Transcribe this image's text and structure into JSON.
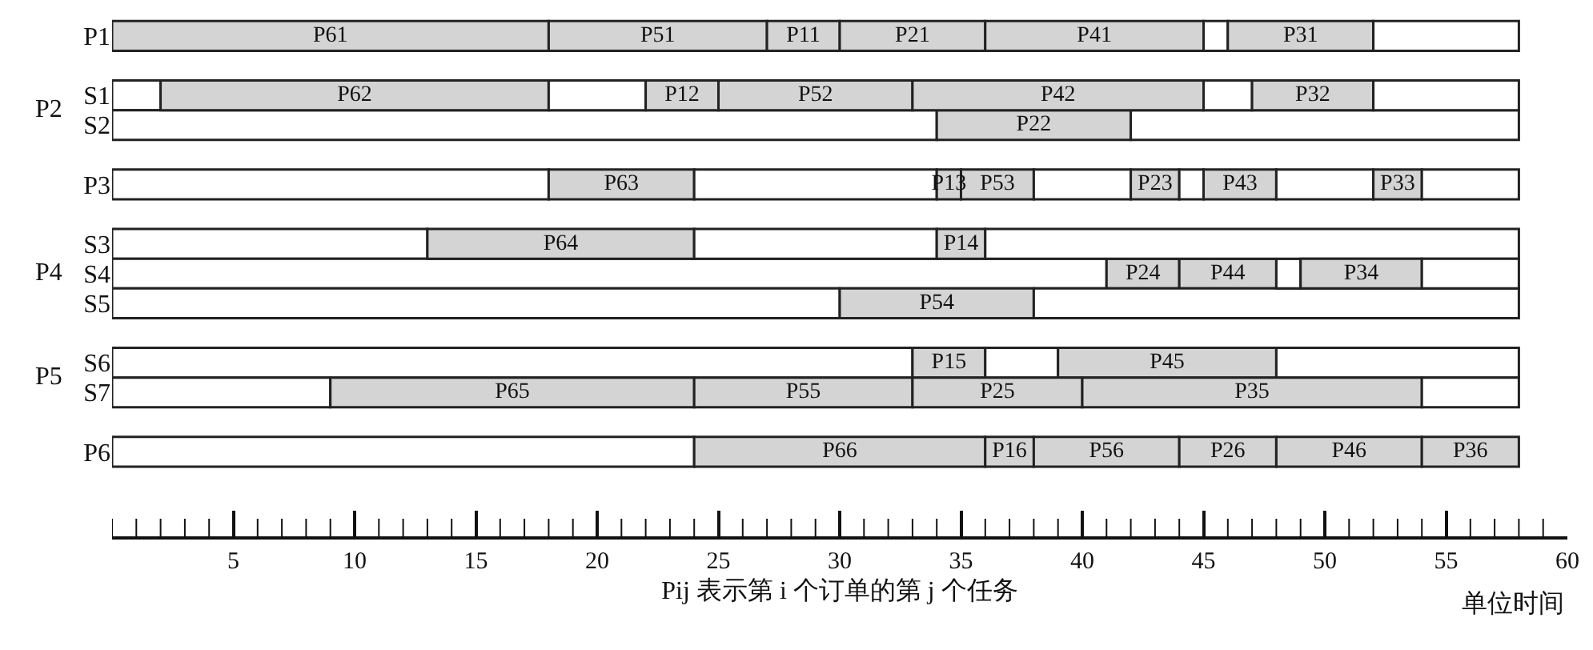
{
  "chart_data": {
    "type": "bar",
    "orientation": "horizontal",
    "xlabel": "Pij 表示第 i 个订单的第 j 个任务",
    "annotations": [
      "P2",
      "P4",
      "P5",
      "单位时间"
    ],
    "categories": [
      "P1",
      null,
      "S1",
      "S2",
      null,
      "P3",
      null,
      "S3",
      "S4",
      "S5",
      null,
      "S6",
      "S7",
      null,
      "P6"
    ],
    "xlim": [
      0,
      60
    ],
    "xticks": [
      5,
      10,
      15,
      20,
      25,
      30,
      35,
      40,
      45,
      50,
      55,
      60
    ],
    "series": [
      {
        "base": [
          0,
          null,
          0,
          0,
          null,
          0,
          null,
          0,
          0,
          0,
          null,
          0,
          0,
          null,
          0
        ],
        "values": [
          18,
          null,
          2,
          34,
          null,
          18,
          null,
          13,
          41,
          30,
          null,
          33,
          9,
          null,
          24
        ],
        "colors": [
          "#d4d4d4",
          null,
          "#ffffff",
          "#ffffff",
          null,
          "#ffffff",
          null,
          "#ffffff",
          "#ffffff",
          "#ffffff",
          null,
          "#ffffff",
          "#ffffff",
          null,
          "#ffffff"
        ],
        "value_labels": [
          "P61",
          null,
          null,
          null,
          null,
          null,
          null,
          null,
          null,
          null,
          null,
          null,
          null,
          null,
          null
        ]
      },
      {
        "base": [
          18,
          null,
          2,
          34,
          null,
          18,
          null,
          13,
          41,
          30,
          null,
          33,
          9,
          null,
          24
        ],
        "values": [
          9,
          null,
          16,
          8,
          null,
          6,
          null,
          11,
          3,
          8,
          null,
          3,
          15,
          null,
          12
        ],
        "colors": [
          "#d4d4d4",
          null,
          "#d4d4d4",
          "#d4d4d4",
          null,
          "#d4d4d4",
          null,
          "#d4d4d4",
          "#d4d4d4",
          "#d4d4d4",
          null,
          "#d4d4d4",
          "#d4d4d4",
          null,
          "#d4d4d4"
        ],
        "value_labels": [
          "P51",
          null,
          "P62",
          "P22",
          null,
          "P63",
          null,
          "P64",
          "P24",
          "P54",
          null,
          "P15",
          "P65",
          null,
          "P66"
        ]
      },
      {
        "base": [
          27,
          null,
          18,
          42,
          null,
          24,
          null,
          24,
          44,
          38,
          null,
          36,
          24,
          null,
          36
        ],
        "values": [
          3,
          null,
          4,
          16,
          null,
          10,
          null,
          10,
          4,
          20,
          null,
          3,
          9,
          null,
          2
        ],
        "colors": [
          "#d4d4d4",
          null,
          "#ffffff",
          "#ffffff",
          null,
          "#ffffff",
          null,
          "#ffffff",
          "#d4d4d4",
          "#ffffff",
          null,
          "#ffffff",
          "#d4d4d4",
          null,
          "#d4d4d4"
        ],
        "value_labels": [
          "P11",
          null,
          null,
          null,
          null,
          null,
          null,
          null,
          "P44",
          null,
          null,
          null,
          "P55",
          null,
          "P16"
        ]
      },
      {
        "base": [
          30,
          null,
          22,
          null,
          null,
          34,
          null,
          34,
          48,
          null,
          null,
          39,
          33,
          null,
          38
        ],
        "values": [
          6,
          null,
          3,
          null,
          null,
          1,
          null,
          2,
          1,
          null,
          null,
          9,
          7,
          null,
          6
        ],
        "colors": [
          "#d4d4d4",
          null,
          "#d4d4d4",
          null,
          null,
          "#d4d4d4",
          null,
          "#d4d4d4",
          "#ffffff",
          null,
          null,
          "#d4d4d4",
          "#d4d4d4",
          null,
          "#d4d4d4"
        ],
        "value_labels": [
          "P21",
          null,
          "P12",
          null,
          null,
          "P13",
          null,
          "P14",
          null,
          null,
          null,
          "P45",
          "P25",
          null,
          "P56"
        ]
      },
      {
        "base": [
          36,
          null,
          25,
          null,
          null,
          35,
          null,
          36,
          49,
          null,
          null,
          48,
          40,
          null,
          44
        ],
        "values": [
          9,
          null,
          8,
          null,
          null,
          3,
          null,
          22,
          5,
          null,
          null,
          10,
          14,
          null,
          4
        ],
        "colors": [
          "#d4d4d4",
          null,
          "#d4d4d4",
          null,
          null,
          "#d4d4d4",
          null,
          "#ffffff",
          "#d4d4d4",
          null,
          null,
          "#ffffff",
          "#d4d4d4",
          null,
          "#d4d4d4"
        ],
        "value_labels": [
          "P41",
          null,
          "P52",
          null,
          null,
          "P53",
          null,
          null,
          "P34",
          null,
          null,
          null,
          "P35",
          null,
          "P26"
        ]
      },
      {
        "base": [
          45,
          null,
          33,
          null,
          null,
          38,
          null,
          null,
          54,
          null,
          null,
          null,
          54,
          null,
          48
        ],
        "values": [
          1,
          null,
          12,
          null,
          null,
          4,
          null,
          null,
          4,
          null,
          null,
          null,
          4,
          null,
          6
        ],
        "colors": [
          "#ffffff",
          null,
          "#d4d4d4",
          null,
          null,
          "#ffffff",
          null,
          null,
          "#ffffff",
          null,
          null,
          null,
          "#ffffff",
          null,
          "#d4d4d4"
        ],
        "value_labels": [
          null,
          null,
          "P42",
          null,
          null,
          null,
          null,
          null,
          null,
          null,
          null,
          null,
          null,
          null,
          "P46"
        ]
      },
      {
        "base": [
          46,
          null,
          45,
          null,
          null,
          42,
          null,
          null,
          null,
          null,
          null,
          null,
          null,
          null,
          54
        ],
        "values": [
          6,
          null,
          2,
          null,
          null,
          2,
          null,
          null,
          null,
          null,
          null,
          null,
          null,
          null,
          4
        ],
        "colors": [
          "#d4d4d4",
          null,
          "#ffffff",
          null,
          null,
          "#d4d4d4",
          null,
          null,
          null,
          null,
          null,
          null,
          null,
          null,
          "#d4d4d4"
        ],
        "value_labels": [
          "P31",
          null,
          null,
          null,
          null,
          "P23",
          null,
          null,
          null,
          null,
          null,
          null,
          null,
          null,
          "P36"
        ]
      },
      {
        "base": [
          52,
          null,
          47,
          null,
          null,
          44,
          null,
          null,
          null,
          null,
          null,
          null,
          null,
          null,
          null
        ],
        "values": [
          6,
          null,
          5,
          null,
          null,
          1,
          null,
          null,
          null,
          null,
          null,
          null,
          null,
          null,
          null
        ],
        "colors": [
          "#ffffff",
          null,
          "#d4d4d4",
          null,
          null,
          "#ffffff",
          null,
          null,
          null,
          null,
          null,
          null,
          null,
          null,
          null
        ],
        "value_labels": [
          null,
          null,
          "P32",
          null,
          null,
          null,
          null,
          null,
          null,
          null,
          null,
          null,
          null,
          null,
          null
        ]
      },
      {
        "base": [
          null,
          null,
          52,
          null,
          null,
          45,
          null,
          null,
          null,
          null,
          null,
          null,
          null,
          null,
          null
        ],
        "values": [
          null,
          null,
          6,
          null,
          null,
          3,
          null,
          null,
          null,
          null,
          null,
          null,
          null,
          null,
          null
        ],
        "colors": [
          null,
          null,
          "#ffffff",
          null,
          null,
          "#d4d4d4",
          null,
          null,
          null,
          null,
          null,
          null,
          null,
          null,
          null
        ],
        "value_labels": [
          null,
          null,
          null,
          null,
          null,
          "P43",
          null,
          null,
          null,
          null,
          null,
          null,
          null,
          null,
          null
        ]
      },
      {
        "base": [
          null,
          null,
          null,
          null,
          null,
          48,
          null,
          null,
          null,
          null,
          null,
          null,
          null,
          null,
          null
        ],
        "values": [
          null,
          null,
          null,
          null,
          null,
          4,
          null,
          null,
          null,
          null,
          null,
          null,
          null,
          null,
          null
        ],
        "colors": [
          null,
          null,
          null,
          null,
          null,
          "#ffffff",
          null,
          null,
          null,
          null,
          null,
          null,
          null,
          null,
          null
        ],
        "value_labels": [
          null,
          null,
          null,
          null,
          null,
          null,
          null,
          null,
          null,
          null,
          null,
          null,
          null,
          null,
          null
        ]
      },
      {
        "base": [
          null,
          null,
          null,
          null,
          null,
          52,
          null,
          null,
          null,
          null,
          null,
          null,
          null,
          null,
          null
        ],
        "values": [
          null,
          null,
          null,
          null,
          null,
          2,
          null,
          null,
          null,
          null,
          null,
          null,
          null,
          null,
          null
        ],
        "colors": [
          null,
          null,
          null,
          null,
          null,
          "#d4d4d4",
          null,
          null,
          null,
          null,
          null,
          null,
          null,
          null,
          null
        ],
        "value_labels": [
          null,
          null,
          null,
          null,
          null,
          "P33",
          null,
          null,
          null,
          null,
          null,
          null,
          null,
          null,
          null
        ]
      },
      {
        "base": [
          null,
          null,
          null,
          null,
          null,
          54,
          null,
          null,
          null,
          null,
          null,
          null,
          null,
          null,
          null
        ],
        "values": [
          null,
          null,
          null,
          null,
          null,
          4,
          null,
          null,
          null,
          null,
          null,
          null,
          null,
          null,
          null
        ],
        "colors": [
          null,
          null,
          null,
          null,
          null,
          "#ffffff",
          null,
          null,
          null,
          null,
          null,
          null,
          null,
          null,
          null
        ],
        "value_labels": [
          null,
          null,
          null,
          null,
          null,
          null,
          null,
          null,
          null,
          null,
          null,
          null,
          null,
          null,
          null
        ]
      }
    ]
  }
}
